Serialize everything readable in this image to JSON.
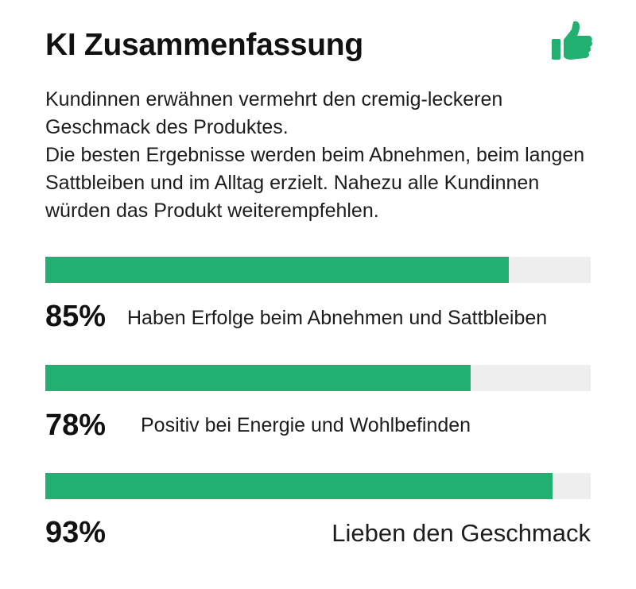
{
  "header": {
    "title": "KI Zusammenfassung",
    "icon": "thumbs-up-icon",
    "icon_color": "#22b070"
  },
  "summary": {
    "paragraph_1": "Kundinnen erwähnen vermehrt den cremig-leckeren Geschmack des Produktes.",
    "paragraph_2": "Die besten Ergebnisse werden beim Abnehmen, beim langen Sattbleiben und im Alltag erzielt. Nahezu alle Kundinnen würden das Produkt weiterempfehlen."
  },
  "colors": {
    "bar_fill": "#22b070",
    "bar_track": "#eeeeee"
  },
  "stats": [
    {
      "percent_text": "85%",
      "fraction": 0.85,
      "label": "Haben Erfolge beim Abnehmen und Sattbleiben"
    },
    {
      "percent_text": "78%",
      "fraction": 0.78,
      "label": "Positiv bei Energie und Wohlbefinden"
    },
    {
      "percent_text": "93%",
      "fraction": 0.93,
      "label": "Lieben den Geschmack"
    }
  ]
}
